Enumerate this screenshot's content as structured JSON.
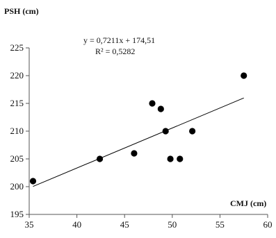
{
  "chart_data": {
    "type": "scatter",
    "title": "",
    "ylabel": "PSH (cm)",
    "xlabel": "CMJ (cm)",
    "xlim": [
      35,
      60
    ],
    "ylim": [
      195,
      225
    ],
    "x_ticks": [
      35,
      40,
      45,
      50,
      55,
      60
    ],
    "y_ticks": [
      195,
      200,
      205,
      210,
      215,
      220,
      225
    ],
    "x_tick_labels": [
      "35",
      "40",
      "45",
      "50",
      "55",
      "60"
    ],
    "y_tick_labels": [
      "195",
      "200",
      "205",
      "210",
      "215",
      "220",
      "225"
    ],
    "grid": false,
    "legend": "none",
    "points": [
      {
        "x": 35.4,
        "y": 201
      },
      {
        "x": 42.4,
        "y": 205
      },
      {
        "x": 46.0,
        "y": 206
      },
      {
        "x": 47.9,
        "y": 215
      },
      {
        "x": 48.8,
        "y": 214
      },
      {
        "x": 49.3,
        "y": 210
      },
      {
        "x": 49.8,
        "y": 205
      },
      {
        "x": 50.8,
        "y": 205
      },
      {
        "x": 52.1,
        "y": 210
      },
      {
        "x": 57.5,
        "y": 220
      }
    ],
    "trendline": {
      "type": "linear",
      "slope": 0.7211,
      "intercept": 174.51,
      "x_range": [
        35.4,
        57.5
      ],
      "equation": "y = 0,7211x + 174,51",
      "r_squared": "R² = 0,5282"
    },
    "colors": {
      "marker": "#000000",
      "line": "#000000",
      "axis": "#555555"
    }
  }
}
